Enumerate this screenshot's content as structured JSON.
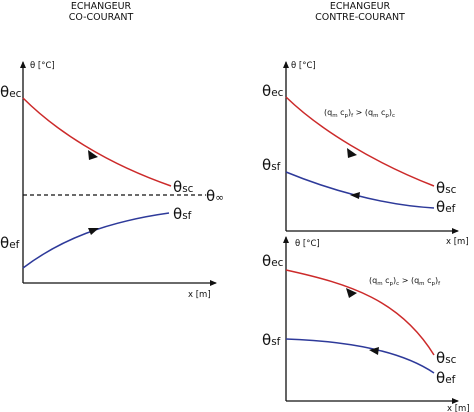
{
  "left": {
    "title_line1": "ECHANGEUR",
    "title_line2": "CO-COURANT",
    "ylabel": "θ [°C]",
    "xlabel": "x [m]",
    "theta_ec": {
      "base": "θ",
      "sub": "ec"
    },
    "theta_sc": {
      "base": "θ",
      "sub": "sc"
    },
    "theta_inf": {
      "base": "θ",
      "sub": "∞"
    },
    "theta_sf": {
      "base": "θ",
      "sub": "sf"
    },
    "theta_ef": {
      "base": "θ",
      "sub": "ef"
    }
  },
  "right": {
    "title_line1": "ECHANGEUR",
    "title_line2": "CONTRE-COURANT",
    "top": {
      "ylabel": "θ [°C]",
      "xlabel": "x [m]",
      "condition": {
        "a": "(q",
        "a_m": "m",
        "a_mid": " c",
        "a_p": "p",
        "a_close": ")",
        "a_f": "f",
        "op": " > ",
        "b": "(q",
        "b_m": "m",
        "b_mid": " c",
        "b_p": "p",
        "b_close": ")",
        "b_c": "c"
      },
      "theta_ec": {
        "base": "θ",
        "sub": "ec"
      },
      "theta_sf": {
        "base": "θ",
        "sub": "sf"
      },
      "theta_sc": {
        "base": "θ",
        "sub": "sc"
      },
      "theta_ef": {
        "base": "θ",
        "sub": "ef"
      }
    },
    "bottom": {
      "ylabel": "θ [°C]",
      "xlabel": "x [m]",
      "condition": {
        "a": "(q",
        "a_m": "m",
        "a_mid": " c",
        "a_p": "p",
        "a_close": ")",
        "a_f": "c",
        "op": " > ",
        "b": "(q",
        "b_m": "m",
        "b_mid": " c",
        "b_p": "p",
        "b_close": ")",
        "b_c": "f"
      },
      "theta_ec": {
        "base": "θ",
        "sub": "ec"
      },
      "theta_sf": {
        "base": "θ",
        "sub": "sf"
      },
      "theta_sc": {
        "base": "θ",
        "sub": "sc"
      },
      "theta_ef": {
        "base": "θ",
        "sub": "ef"
      }
    }
  },
  "colors": {
    "hot": "#cc2a2a",
    "cold": "#2e3a9a",
    "axis": "#111111"
  }
}
